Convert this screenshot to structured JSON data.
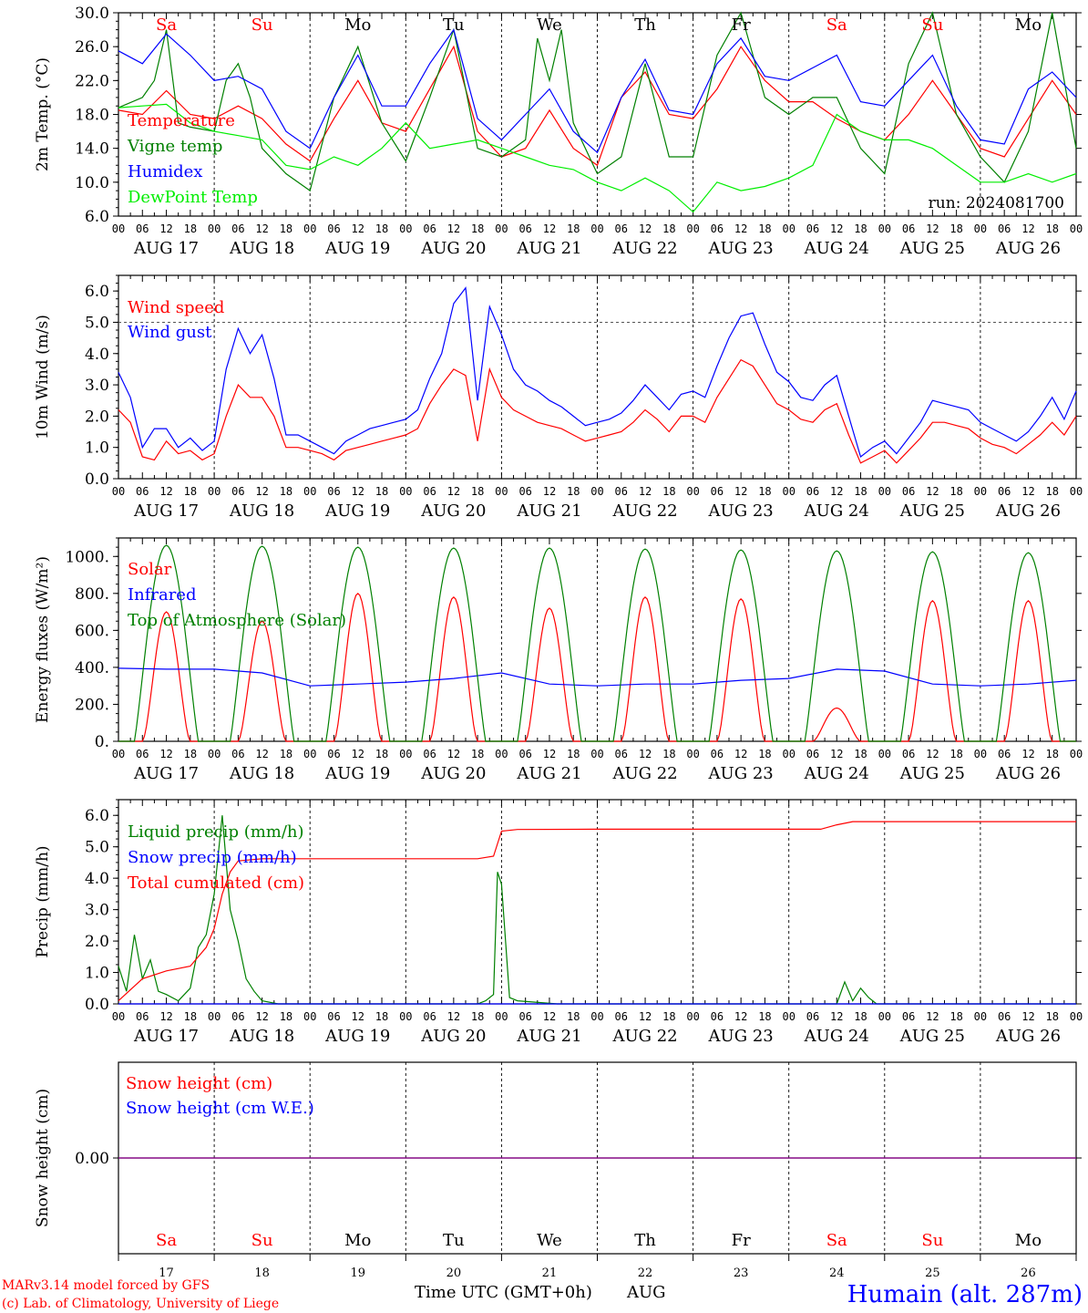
{
  "colors": {
    "red": "#ff0000",
    "green": "#008000",
    "blue": "#0000ff",
    "lightgreen": "#00ee00",
    "purple": "#800080",
    "black": "#000000"
  },
  "day_names": [
    "Sa",
    "Su",
    "Mo",
    "Tu",
    "We",
    "Th",
    "Fr",
    "Sa",
    "Su",
    "Mo"
  ],
  "day_name_colors": [
    "red",
    "red",
    "black",
    "black",
    "black",
    "black",
    "black",
    "red",
    "red",
    "black"
  ],
  "date_labels": [
    "AUG 17",
    "AUG 18",
    "AUG 19",
    "AUG 20",
    "AUG 21",
    "AUG 22",
    "AUG 23",
    "AUG 24",
    "AUG 25",
    "AUG 26"
  ],
  "day_numbers": [
    "17",
    "18",
    "19",
    "20",
    "21",
    "22",
    "23",
    "24",
    "25",
    "26"
  ],
  "hour_labels": [
    "00",
    "06",
    "12",
    "18"
  ],
  "hour_label_end": "00",
  "footer": {
    "model": "MARv3.14 model forced by GFS",
    "lab": "(c) Lab. of Climatology, University of Liege",
    "axis_title": "Time UTC (GMT+0h)",
    "month": "AUG",
    "station": "Humain (alt. 287m)"
  },
  "chart_data": [
    {
      "type": "line",
      "ylabel": "2m Temp. (°C)",
      "ylim": [
        6,
        30
      ],
      "yticks": [
        "6.0",
        "10.0",
        "14.0",
        "18.0",
        "22.0",
        "26.0",
        "30.0"
      ],
      "annotation": "run: 2024081700",
      "x_unit": "hours since Aug 17 00 UTC",
      "series": [
        {
          "name": "Temperature",
          "color": "red",
          "x": [
            0,
            6,
            12,
            18,
            24,
            30,
            36,
            42,
            48,
            54,
            60,
            66,
            72,
            78,
            84,
            90,
            96,
            102,
            108,
            114,
            120,
            126,
            132,
            138,
            144,
            150,
            156,
            162,
            168,
            174,
            180,
            186,
            192,
            198,
            204,
            210,
            216,
            222,
            228,
            234,
            240
          ],
          "values": [
            18.5,
            18,
            20.8,
            18,
            17.5,
            19,
            17.5,
            14.5,
            12.5,
            17.5,
            22,
            17,
            16,
            21,
            26,
            16,
            13,
            14,
            18.5,
            14,
            12,
            20,
            23,
            18,
            17.5,
            21,
            26,
            22,
            19.5,
            19.5,
            17.5,
            16,
            15,
            18,
            22,
            18,
            14,
            13,
            17.5,
            22,
            18
          ]
        },
        {
          "name": "Vigne temp",
          "color": "green",
          "x": [
            0,
            6,
            9,
            12,
            15,
            18,
            24,
            27,
            30,
            33,
            36,
            42,
            48,
            54,
            60,
            66,
            72,
            78,
            84,
            90,
            96,
            102,
            105,
            108,
            111,
            114,
            120,
            126,
            132,
            138,
            144,
            150,
            156,
            162,
            168,
            174,
            180,
            186,
            192,
            198,
            204,
            210,
            216,
            222,
            228,
            234,
            240
          ],
          "values": [
            18.8,
            20,
            22,
            28,
            17,
            16.5,
            16,
            22,
            24,
            20,
            14,
            11,
            9,
            20,
            26,
            17,
            12.5,
            20,
            28,
            14,
            13,
            15,
            27,
            22,
            28,
            17,
            11,
            13,
            24,
            13,
            13,
            25,
            30,
            20,
            18,
            20,
            20,
            14,
            11,
            24,
            30,
            18,
            13,
            10,
            16,
            30,
            14
          ]
        },
        {
          "name": "Humidex",
          "color": "blue",
          "x": [
            0,
            6,
            12,
            18,
            24,
            30,
            36,
            42,
            48,
            54,
            60,
            66,
            72,
            78,
            84,
            90,
            96,
            102,
            108,
            114,
            120,
            126,
            132,
            138,
            144,
            150,
            156,
            162,
            168,
            174,
            180,
            186,
            192,
            198,
            204,
            210,
            216,
            222,
            228,
            234,
            240
          ],
          "values": [
            25.5,
            24,
            27.5,
            25,
            22,
            22.5,
            21,
            16,
            14,
            20,
            25,
            19,
            19,
            24,
            28,
            17.5,
            15,
            18,
            21,
            16,
            13.5,
            20,
            24.5,
            18.5,
            18,
            24,
            27,
            22.5,
            22,
            23.5,
            25,
            19.5,
            19,
            22,
            25,
            19,
            15,
            14.5,
            21,
            23,
            20
          ]
        },
        {
          "name": "DewPoint Temp",
          "color": "lightgreen",
          "x": [
            0,
            6,
            12,
            18,
            24,
            30,
            36,
            42,
            48,
            54,
            60,
            66,
            72,
            78,
            84,
            90,
            96,
            102,
            108,
            114,
            120,
            126,
            132,
            138,
            144,
            150,
            156,
            162,
            168,
            174,
            180,
            186,
            192,
            198,
            204,
            210,
            216,
            222,
            228,
            234,
            240
          ],
          "values": [
            18.8,
            19,
            19.2,
            17,
            16,
            15.5,
            15,
            12,
            11.5,
            13,
            12,
            14,
            17,
            14,
            14.5,
            15,
            14,
            13,
            12,
            11.5,
            10,
            9,
            10.5,
            9,
            6.5,
            10,
            9,
            9.5,
            10.5,
            12,
            18,
            16,
            15,
            15,
            14,
            12,
            10,
            10,
            11,
            10,
            11
          ]
        }
      ]
    },
    {
      "type": "line",
      "ylabel": "10m Wind (m/s)",
      "ylim": [
        0,
        6.5
      ],
      "yticks": [
        "0.0",
        "1.0",
        "2.0",
        "3.0",
        "4.0",
        "5.0",
        "6.0"
      ],
      "hline": 5,
      "series": [
        {
          "name": "Wind speed",
          "color": "red",
          "x": [
            0,
            3,
            6,
            9,
            12,
            15,
            18,
            21,
            24,
            27,
            30,
            33,
            36,
            39,
            42,
            45,
            48,
            51,
            54,
            57,
            60,
            63,
            66,
            69,
            72,
            75,
            78,
            81,
            84,
            87,
            90,
            93,
            96,
            99,
            102,
            105,
            108,
            111,
            114,
            117,
            120,
            123,
            126,
            129,
            132,
            135,
            138,
            141,
            144,
            147,
            150,
            153,
            156,
            159,
            162,
            165,
            168,
            171,
            174,
            177,
            180,
            183,
            186,
            189,
            192,
            195,
            198,
            201,
            204,
            207,
            210,
            213,
            216,
            219,
            222,
            225,
            228,
            231,
            234,
            237,
            240
          ],
          "values": [
            2.2,
            1.8,
            0.7,
            0.6,
            1.2,
            0.8,
            0.9,
            0.6,
            0.8,
            2.0,
            3.0,
            2.6,
            2.6,
            2.0,
            1.0,
            1.0,
            0.9,
            0.8,
            0.6,
            0.9,
            1.0,
            1.1,
            1.2,
            1.3,
            1.4,
            1.6,
            2.4,
            3.0,
            3.5,
            3.3,
            1.2,
            3.5,
            2.6,
            2.2,
            2.0,
            1.8,
            1.7,
            1.6,
            1.4,
            1.2,
            1.3,
            1.4,
            1.5,
            1.8,
            2.2,
            1.9,
            1.5,
            2.0,
            2.0,
            1.8,
            2.6,
            3.2,
            3.8,
            3.6,
            3.0,
            2.4,
            2.2,
            1.9,
            1.8,
            2.2,
            2.4,
            1.4,
            0.5,
            0.7,
            0.9,
            0.5,
            0.9,
            1.3,
            1.8,
            1.8,
            1.7,
            1.6,
            1.3,
            1.1,
            1.0,
            0.8,
            1.1,
            1.4,
            1.8,
            1.4,
            2.0
          ]
        },
        {
          "name": "Wind gust",
          "color": "blue",
          "x": [
            0,
            3,
            6,
            9,
            12,
            15,
            18,
            21,
            24,
            27,
            30,
            33,
            36,
            39,
            42,
            45,
            48,
            51,
            54,
            57,
            60,
            63,
            66,
            69,
            72,
            75,
            78,
            81,
            84,
            87,
            90,
            93,
            96,
            99,
            102,
            105,
            108,
            111,
            114,
            117,
            120,
            123,
            126,
            129,
            132,
            135,
            138,
            141,
            144,
            147,
            150,
            153,
            156,
            159,
            162,
            165,
            168,
            171,
            174,
            177,
            180,
            183,
            186,
            189,
            192,
            195,
            198,
            201,
            204,
            207,
            210,
            213,
            216,
            219,
            222,
            225,
            228,
            231,
            234,
            237,
            240
          ],
          "values": [
            3.4,
            2.6,
            1.0,
            1.6,
            1.6,
            1.0,
            1.3,
            0.9,
            1.2,
            3.5,
            4.8,
            4.0,
            4.6,
            3.2,
            1.4,
            1.4,
            1.2,
            1.0,
            0.8,
            1.2,
            1.4,
            1.6,
            1.7,
            1.8,
            1.9,
            2.2,
            3.2,
            4.0,
            5.6,
            6.1,
            2.5,
            5.5,
            4.6,
            3.5,
            3.0,
            2.8,
            2.5,
            2.3,
            2.0,
            1.7,
            1.8,
            1.9,
            2.1,
            2.5,
            3.0,
            2.6,
            2.2,
            2.7,
            2.8,
            2.6,
            3.6,
            4.5,
            5.2,
            5.3,
            4.3,
            3.4,
            3.1,
            2.6,
            2.5,
            3.0,
            3.3,
            2.0,
            0.7,
            1.0,
            1.2,
            0.8,
            1.3,
            1.8,
            2.5,
            2.4,
            2.3,
            2.2,
            1.8,
            1.6,
            1.4,
            1.2,
            1.5,
            2.0,
            2.6,
            1.9,
            2.8
          ]
        }
      ]
    },
    {
      "type": "line",
      "ylabel": "Energy fluxes (W/m²)",
      "ylim": [
        0,
        1100
      ],
      "yticks": [
        "0.",
        "200.",
        "400.",
        "600.",
        "800.",
        "1000."
      ],
      "series": [
        {
          "name": "Solar",
          "color": "red",
          "day_peaks": [
            700,
            650,
            800,
            780,
            720,
            780,
            770,
            180,
            760,
            760
          ]
        },
        {
          "name": "Infrared",
          "color": "blue",
          "x": [
            0,
            12,
            24,
            36,
            48,
            60,
            72,
            84,
            96,
            108,
            120,
            132,
            144,
            156,
            168,
            180,
            192,
            204,
            216,
            228,
            240
          ],
          "values": [
            395,
            390,
            390,
            370,
            300,
            310,
            320,
            340,
            370,
            310,
            300,
            310,
            310,
            330,
            340,
            390,
            380,
            310,
            300,
            310,
            330
          ]
        },
        {
          "name": "Top of Atmosphere (Solar)",
          "color": "green",
          "day_peaks": [
            1060,
            1055,
            1050,
            1045,
            1045,
            1040,
            1035,
            1030,
            1025,
            1020
          ]
        }
      ]
    },
    {
      "type": "line",
      "ylabel": "Precip (mm/h)",
      "ylim": [
        0,
        6.5
      ],
      "yticks": [
        "0.0",
        "1.0",
        "2.0",
        "3.0",
        "4.0",
        "5.0",
        "6.0"
      ],
      "series": [
        {
          "name": "Liquid precip (mm/h)",
          "color": "green",
          "x": [
            0,
            2,
            4,
            6,
            8,
            10,
            12,
            15,
            18,
            20,
            22,
            24,
            26,
            28,
            30,
            32,
            34,
            36,
            40,
            48,
            90,
            92,
            94,
            95,
            96,
            98,
            100,
            110,
            180,
            182,
            184,
            186,
            188,
            190,
            192,
            240
          ],
          "values": [
            1.2,
            0.4,
            2.2,
            0.8,
            1.4,
            0.4,
            0.3,
            0.1,
            0.5,
            1.8,
            2.2,
            3.5,
            6.0,
            3.0,
            2.0,
            0.8,
            0.4,
            0.1,
            0.0,
            0.0,
            0.0,
            0.1,
            0.3,
            4.2,
            3.8,
            0.2,
            0.1,
            0.0,
            0.0,
            0.7,
            0.1,
            0.5,
            0.2,
            0.0,
            0.0,
            0.0
          ]
        },
        {
          "name": "Snow precip (mm/h)",
          "color": "blue",
          "x": [
            0,
            240
          ],
          "values": [
            0,
            0
          ]
        },
        {
          "name": "Total cumulated (cm)",
          "color": "red",
          "x": [
            0,
            6,
            12,
            18,
            22,
            24,
            26,
            28,
            30,
            36,
            48,
            72,
            90,
            94,
            96,
            100,
            120,
            150,
            176,
            180,
            184,
            190,
            240
          ],
          "values": [
            0.1,
            0.8,
            1.05,
            1.2,
            1.8,
            2.4,
            3.5,
            4.2,
            4.55,
            4.62,
            4.62,
            4.62,
            4.62,
            4.7,
            5.5,
            5.55,
            5.56,
            5.56,
            5.56,
            5.7,
            5.8,
            5.8,
            5.8
          ]
        }
      ]
    },
    {
      "type": "line",
      "ylabel": "Snow height (cm)",
      "yticks": [
        "0.00"
      ],
      "series": [
        {
          "name": "Snow height (cm)",
          "color": "red",
          "x": [
            0,
            240
          ],
          "values": [
            0,
            0
          ]
        },
        {
          "name": "Snow height (cm W.E.)",
          "color": "blue",
          "x": [
            0,
            240
          ],
          "values": [
            0,
            0
          ]
        }
      ]
    }
  ]
}
